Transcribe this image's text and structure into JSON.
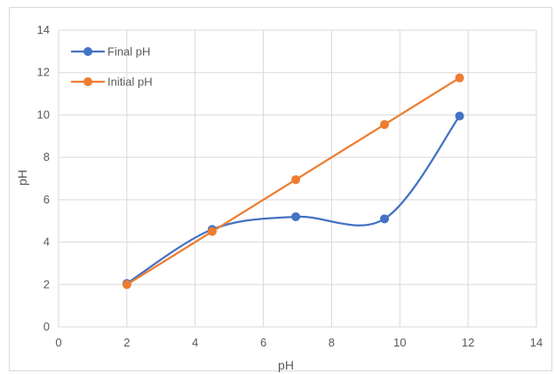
{
  "chart_data": {
    "type": "scatter",
    "title": "",
    "xlabel": "pH",
    "ylabel": "pH",
    "xlim": [
      0,
      14
    ],
    "ylim": [
      0,
      14
    ],
    "x_ticks": [
      0,
      2,
      4,
      6,
      8,
      10,
      12,
      14
    ],
    "y_ticks": [
      0,
      2,
      4,
      6,
      8,
      10,
      12,
      14
    ],
    "grid": true,
    "legend_position": "top-left",
    "series": [
      {
        "name": "Final pH",
        "color": "#4472c4",
        "smooth": true,
        "x": [
          2.0,
          4.5,
          6.95,
          9.55,
          11.75
        ],
        "y": [
          2.05,
          4.6,
          5.2,
          5.1,
          9.95
        ]
      },
      {
        "name": "Initial pH",
        "color": "#ed7d31",
        "smooth": false,
        "x": [
          2.0,
          4.5,
          6.95,
          9.55,
          11.75
        ],
        "y": [
          2.0,
          4.5,
          6.95,
          9.55,
          11.75
        ]
      }
    ]
  }
}
